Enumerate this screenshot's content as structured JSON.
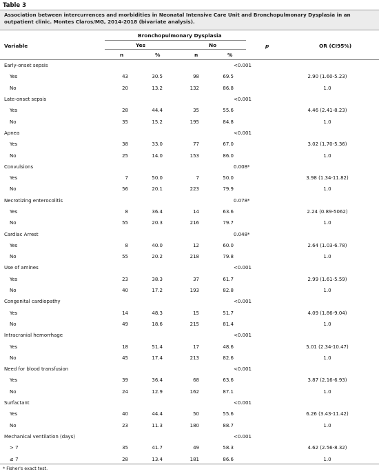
{
  "table": {
    "label": "Table 3",
    "caption": "Association between intercurrences and morbidities in Neonatal Intensive Care Unit and Bronchopulmonary Dysplasia in an outpatient clinic. Montes Claros/MG, 2014-2018 (bivariate analysis).",
    "headers": {
      "variable": "Variable",
      "group": "Bronchopulmonary Dysplasia",
      "yes": "Yes",
      "no": "No",
      "p": "p",
      "or": "OR (CI95%)",
      "n": "n",
      "pct": "%"
    },
    "groups": [
      {
        "name": "Early-onset sepsis",
        "p": "<0.001",
        "rows": [
          {
            "label": "Yes",
            "yn": "43",
            "yp": "30.5",
            "nn": "98",
            "np": "69.5",
            "or": "2.90 (1.60-5.23)"
          },
          {
            "label": "No",
            "yn": "20",
            "yp": "13.2",
            "nn": "132",
            "np": "86.8",
            "or": "1.0"
          }
        ]
      },
      {
        "name": "Late-onset sepsis",
        "p": "<0.001",
        "rows": [
          {
            "label": "Yes",
            "yn": "28",
            "yp": "44.4",
            "nn": "35",
            "np": "55.6",
            "or": "4.46 (2.41-8.23)"
          },
          {
            "label": "No",
            "yn": "35",
            "yp": "15.2",
            "nn": "195",
            "np": "84.8",
            "or": "1.0"
          }
        ]
      },
      {
        "name": "Apnea",
        "p": "<0.001",
        "rows": [
          {
            "label": "Yes",
            "yn": "38",
            "yp": "33.0",
            "nn": "77",
            "np": "67.0",
            "or": "3.02 (1.70-5.36)"
          },
          {
            "label": "No",
            "yn": "25",
            "yp": "14.0",
            "nn": "153",
            "np": "86.0",
            "or": "1.0"
          }
        ]
      },
      {
        "name": "Convulsions",
        "p": "0.008*",
        "rows": [
          {
            "label": "Yes",
            "yn": "7",
            "yp": "50.0",
            "nn": "7",
            "np": "50.0",
            "or": "3.98 (1.34-11.82)"
          },
          {
            "label": "No",
            "yn": "56",
            "yp": "20.1",
            "nn": "223",
            "np": "79.9",
            "or": "1.0"
          }
        ]
      },
      {
        "name": "Necrotizing enterocolitis",
        "p": "0.078*",
        "rows": [
          {
            "label": "Yes",
            "yn": "8",
            "yp": "36.4",
            "nn": "14",
            "np": "63.6",
            "or": "2.24 (0.89-5062)"
          },
          {
            "label": "No",
            "yn": "55",
            "yp": "20.3",
            "nn": "216",
            "np": "79.7",
            "or": "1.0"
          }
        ]
      },
      {
        "name": "Cardiac Arrest",
        "p": "0.048*",
        "rows": [
          {
            "label": "Yes",
            "yn": "8",
            "yp": "40.0",
            "nn": "12",
            "np": "60.0",
            "or": "2.64 (1.03-6.78)"
          },
          {
            "label": "No",
            "yn": "55",
            "yp": "20.2",
            "nn": "218",
            "np": "79.8",
            "or": "1.0"
          }
        ]
      },
      {
        "name": "Use of amines",
        "p": "<0.001",
        "rows": [
          {
            "label": "Yes",
            "yn": "23",
            "yp": "38.3",
            "nn": "37",
            "np": "61.7",
            "or": "2.99 (1.61-5.59)"
          },
          {
            "label": "No",
            "yn": "40",
            "yp": "17.2",
            "nn": "193",
            "np": "82.8",
            "or": "1.0"
          }
        ]
      },
      {
        "name": "Congenital cardiopathy",
        "p": "<0.001",
        "rows": [
          {
            "label": "Yes",
            "yn": "14",
            "yp": "48.3",
            "nn": "15",
            "np": "51.7",
            "or": "4.09 (1.86-9.04)"
          },
          {
            "label": "No",
            "yn": "49",
            "yp": "18.6",
            "nn": "215",
            "np": "81.4",
            "or": "1.0"
          }
        ]
      },
      {
        "name": "Intracranial hemorrhage",
        "p": "<0.001",
        "rows": [
          {
            "label": "Yes",
            "yn": "18",
            "yp": "51.4",
            "nn": "17",
            "np": "48.6",
            "or": "5.01 (2.34-10.47)"
          },
          {
            "label": "No",
            "yn": "45",
            "yp": "17.4",
            "nn": "213",
            "np": "82.6",
            "or": "1.0"
          }
        ]
      },
      {
        "name": "Need for blood transfusion",
        "p": "<0.001",
        "rows": [
          {
            "label": "Yes",
            "yn": "39",
            "yp": "36.4",
            "nn": "68",
            "np": "63.6",
            "or": "3.87 (2.16-6.93)"
          },
          {
            "label": "No",
            "yn": "24",
            "yp": "12.9",
            "nn": "162",
            "np": "87.1",
            "or": "1.0"
          }
        ]
      },
      {
        "name": "Surfactant",
        "p": "<0.001",
        "rows": [
          {
            "label": "Yes",
            "yn": "40",
            "yp": "44.4",
            "nn": "50",
            "np": "55.6",
            "or": "6.26 (3.43-11.42)"
          },
          {
            "label": "No",
            "yn": "23",
            "yp": "11.3",
            "nn": "180",
            "np": "88.7",
            "or": "1.0"
          }
        ]
      },
      {
        "name": "Mechanical ventilation (days)",
        "p": "<0.001",
        "rows": [
          {
            "label": "> 7",
            "yn": "35",
            "yp": "41.7",
            "nn": "49",
            "np": "58.3",
            "or": "4.62 (2.56-8.32)"
          },
          {
            "label": "≤ 7",
            "yn": "28",
            "yp": "13.4",
            "nn": "181",
            "np": "86.6",
            "or": "1.0"
          }
        ]
      }
    ],
    "footnote": "* Fisher's exact test."
  }
}
